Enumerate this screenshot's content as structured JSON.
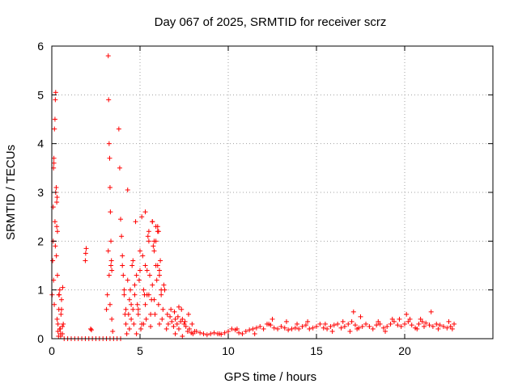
{
  "chart_data": {
    "type": "scatter",
    "title": "Day 067 of 2025, SRMTID for receiver scrz",
    "xlabel": "GPS time / hours",
    "ylabel": "SRMTID / TECUs",
    "xlim": [
      0,
      25
    ],
    "ylim": [
      0,
      6
    ],
    "xticks": [
      0,
      5,
      10,
      15,
      20
    ],
    "yticks": [
      0,
      1,
      2,
      3,
      4,
      5,
      6
    ],
    "grid": true,
    "marker": "+",
    "color": "#ff0000",
    "series": [
      {
        "name": "SRMTID",
        "x": [
          0.02,
          0.05,
          0.08,
          0.1,
          0.12,
          0.15,
          0.18,
          0.2,
          0.22,
          0.25,
          0.28,
          0.3,
          0.32,
          0.35,
          0.38,
          0.4,
          0.42,
          0.45,
          0.48,
          0.5,
          0.52,
          0.55,
          0.6,
          0.62,
          0.65,
          0.08,
          0.12,
          0.18,
          0.22,
          0.28,
          0.32,
          0.1,
          0.14,
          0.2,
          0.26,
          0.3,
          0.35,
          0.4,
          0.45,
          0.5,
          0.55,
          0.6,
          0.7,
          0.9,
          1.1,
          1.3,
          1.5,
          1.7,
          1.9,
          2.1,
          2.3,
          2.5,
          2.7,
          2.9,
          3.1,
          3.3,
          3.5,
          3.7,
          1.9,
          1.92,
          1.95,
          2.2,
          2.25,
          3.2,
          3.22,
          3.25,
          3.28,
          3.3,
          3.32,
          3.35,
          3.38,
          3.4,
          3.1,
          3.15,
          3.2,
          3.25,
          3.3,
          3.35,
          3.4,
          3.45,
          3.8,
          3.85,
          3.9,
          3.95,
          4.0,
          4.05,
          4.1,
          4.15,
          4.2,
          4.25,
          3.9,
          4.0,
          4.1,
          4.2,
          4.3,
          4.3,
          4.4,
          4.5,
          4.6,
          4.7,
          4.8,
          4.9,
          5.0,
          5.1,
          5.2,
          5.3,
          5.4,
          5.5,
          5.6,
          5.7,
          5.8,
          5.9,
          6.0,
          6.1,
          6.2,
          6.3,
          6.4,
          4.35,
          4.45,
          4.55,
          4.65,
          4.75,
          4.85,
          4.95,
          5.05,
          5.15,
          5.25,
          5.35,
          5.45,
          5.55,
          5.65,
          5.75,
          5.85,
          5.95,
          6.05,
          6.15,
          6.25,
          6.35,
          4.4,
          4.6,
          4.8,
          5.0,
          5.2,
          5.4,
          5.6,
          5.8,
          6.0,
          6.2,
          4.5,
          4.7,
          4.9,
          5.1,
          5.3,
          5.5,
          5.7,
          5.9,
          6.1,
          5.3,
          5.5,
          5.7,
          5.8,
          5.9,
          6.0,
          6.05,
          6.1,
          6.5,
          6.6,
          6.7,
          6.8,
          6.9,
          7.0,
          7.1,
          7.2,
          7.3,
          7.4,
          7.5,
          7.6,
          7.7,
          7.8,
          7.9,
          8.0,
          8.2,
          8.4,
          8.6,
          8.8,
          9.0,
          9.2,
          9.4,
          9.6,
          9.8,
          10.0,
          10.2,
          10.4,
          10.6,
          10.8,
          11.0,
          11.2,
          11.4,
          11.6,
          11.8,
          12.0,
          12.2,
          12.4,
          12.6,
          12.8,
          13.0,
          13.2,
          13.4,
          13.6,
          13.8,
          14.0,
          14.2,
          14.4,
          14.6,
          14.8,
          15.0,
          15.2,
          15.4,
          15.6,
          15.8,
          16.0,
          16.2,
          16.4,
          16.6,
          16.8,
          17.0,
          17.2,
          17.4,
          17.6,
          17.8,
          18.0,
          18.2,
          18.4,
          18.6,
          18.8,
          19.0,
          19.2,
          19.4,
          19.6,
          19.8,
          20.0,
          20.2,
          20.4,
          20.6,
          20.8,
          21.0,
          21.2,
          21.4,
          21.6,
          21.8,
          22.0,
          22.2,
          22.4,
          22.6,
          22.8,
          6.55,
          6.75,
          6.95,
          7.15,
          7.35,
          7.55,
          7.75,
          7.95,
          12.5,
          13.3,
          14.5,
          15.5,
          16.5,
          17.1,
          17.5,
          18.5,
          19.3,
          20.1,
          20.3,
          20.9,
          21.5,
          22.5,
          7.2,
          7.0,
          7.4,
          8.1,
          9.5,
          10.5,
          11.5,
          12.3,
          13.9,
          15.9,
          16.9,
          17.3,
          18.9,
          19.7,
          20.7,
          21.1,
          21.9,
          22.7
        ],
        "y": [
          0.9,
          1.6,
          2.0,
          3.5,
          3.6,
          4.3,
          4.5,
          4.9,
          5.05,
          3.1,
          2.3,
          2.9,
          1.3,
          0.3,
          0.05,
          0.6,
          0.9,
          1.0,
          0.2,
          0.1,
          0.5,
          0.8,
          0.1,
          1.05,
          0.3,
          2.7,
          3.7,
          2.4,
          3.0,
          2.8,
          2.2,
          1.2,
          0.7,
          1.9,
          1.7,
          0.4,
          0.15,
          0.9,
          0.2,
          0.05,
          0.6,
          0.25,
          0.0,
          0.0,
          0.0,
          0.0,
          0.0,
          0.0,
          0.0,
          0.0,
          0.0,
          0.0,
          0.0,
          0.0,
          0.0,
          0.0,
          0.0,
          0.0,
          1.6,
          1.75,
          1.85,
          0.2,
          0.18,
          5.8,
          4.9,
          4.0,
          3.7,
          3.1,
          2.6,
          2.0,
          1.6,
          1.4,
          0.6,
          0.9,
          1.8,
          1.3,
          0.7,
          1.5,
          0.4,
          0.15,
          4.3,
          3.5,
          2.45,
          2.1,
          1.7,
          1.3,
          0.9,
          0.5,
          0.3,
          0.1,
          0.0,
          1.5,
          1.0,
          0.6,
          3.05,
          1.2,
          0.8,
          0.4,
          1.6,
          0.9,
          1.3,
          0.6,
          1.8,
          0.3,
          1.0,
          0.7,
          1.4,
          2.0,
          0.5,
          1.1,
          0.8,
          1.5,
          2.2,
          1.3,
          0.9,
          0.6,
          1.0,
          0.5,
          1.0,
          1.5,
          0.3,
          2.4,
          0.7,
          1.2,
          0.2,
          1.7,
          0.9,
          0.4,
          2.1,
          1.3,
          0.8,
          1.9,
          0.5,
          1.2,
          0.7,
          1.6,
          0.4,
          1.1,
          0.2,
          0.6,
          0.1,
          1.4,
          0.3,
          0.9,
          0.25,
          1.8,
          2.3,
          1.0,
          0.7,
          1.1,
          0.5,
          2.5,
          1.5,
          0.9,
          2.4,
          2.0,
          0.3,
          2.6,
          2.2,
          2.4,
          2.0,
          2.3,
          1.5,
          2.2,
          1.4,
          0.2,
          0.3,
          0.45,
          0.35,
          0.25,
          0.4,
          0.3,
          0.2,
          0.35,
          0.4,
          0.3,
          0.25,
          0.15,
          0.2,
          0.12,
          0.1,
          0.15,
          0.12,
          0.1,
          0.08,
          0.1,
          0.12,
          0.1,
          0.09,
          0.12,
          0.15,
          0.2,
          0.18,
          0.12,
          0.1,
          0.15,
          0.18,
          0.2,
          0.22,
          0.25,
          0.2,
          0.3,
          0.28,
          0.22,
          0.2,
          0.25,
          0.22,
          0.18,
          0.2,
          0.22,
          0.2,
          0.25,
          0.28,
          0.2,
          0.22,
          0.25,
          0.3,
          0.22,
          0.2,
          0.25,
          0.28,
          0.3,
          0.22,
          0.25,
          0.3,
          0.35,
          0.28,
          0.22,
          0.25,
          0.3,
          0.25,
          0.2,
          0.28,
          0.3,
          0.22,
          0.25,
          0.3,
          0.35,
          0.28,
          0.25,
          0.3,
          0.35,
          0.28,
          0.22,
          0.3,
          0.35,
          0.32,
          0.28,
          0.25,
          0.3,
          0.28,
          0.25,
          0.22,
          0.25,
          0.3,
          0.5,
          0.6,
          0.55,
          0.45,
          0.6,
          0.35,
          0.5,
          0.3,
          0.4,
          0.35,
          0.35,
          0.3,
          0.35,
          0.55,
          0.45,
          0.35,
          0.4,
          0.5,
          0.4,
          0.4,
          0.55,
          0.35,
          0.65,
          0.1,
          0.05,
          0.15,
          0.1,
          0.2,
          0.1,
          0.3,
          0.3,
          0.15,
          0.15,
          0.2,
          0.15,
          0.4,
          0.2,
          0.25,
          0.2,
          0.2
        ]
      }
    ]
  }
}
